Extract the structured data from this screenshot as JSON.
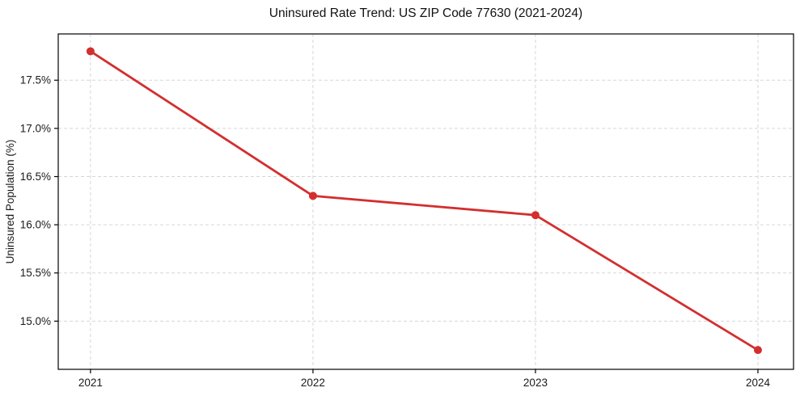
{
  "chart_data": {
    "type": "line",
    "title": "Uninsured Rate Trend: US ZIP Code 77630 (2021-2024)",
    "xlabel": "",
    "ylabel": "Uninsured Population (%)",
    "x": [
      2021,
      2022,
      2023,
      2024
    ],
    "xtick_labels": [
      "2021",
      "2022",
      "2023",
      "2024"
    ],
    "values": [
      17.8,
      16.3,
      16.1,
      14.7
    ],
    "yticks": [
      15.0,
      15.5,
      16.0,
      16.5,
      17.0,
      17.5
    ],
    "ytick_labels": [
      "15.0%",
      "15.5%",
      "16.0%",
      "16.5%",
      "17.0%",
      "17.5%"
    ],
    "xlim": [
      2020.855,
      2024.16
    ],
    "ylim": [
      14.5,
      17.98
    ],
    "grid": true,
    "grid_style": "dashed",
    "legend": "none",
    "marker": "circle",
    "colors": {
      "line": "#d32f2f",
      "marker": "#d32f2f",
      "grid": "#d6d6d6",
      "axis": "#000000",
      "text": "#1a1a1a",
      "background": "#ffffff"
    }
  }
}
